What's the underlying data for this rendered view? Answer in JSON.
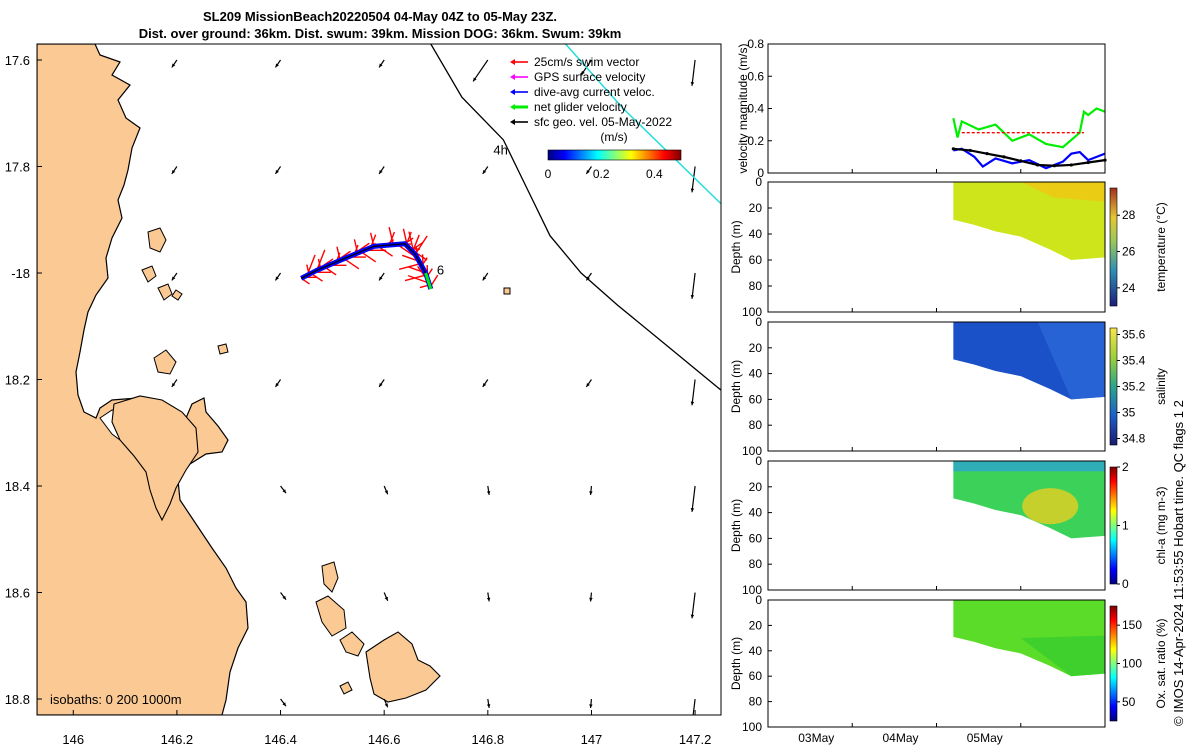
{
  "title": {
    "line1": "SL209 MissionBeach20220504 04-May 04Z to 05-May 23Z.",
    "line2": "Dist. over ground: 36km. Dist. swum: 39km. Mission DOG: 36km. Swum: 39km"
  },
  "footer_credit": "© IMOS 14-Apr-2024 11:53:55 Hobart time. QC flags 1  2",
  "colors": {
    "land": "#fbc994",
    "coast": "#000000",
    "swim": "#ff0000",
    "gps": "#ff00ff",
    "current": "#0000ff",
    "net": "#00ee00",
    "geo": "#000000",
    "cyan": "#22dddd",
    "profile_fill": "#cde51a"
  },
  "chart_data": [
    {
      "type": "scatter",
      "panel": "map",
      "xlim": [
        145.93,
        147.25
      ],
      "ylim": [
        -18.83,
        -17.57
      ],
      "xticks": [
        146,
        146.2,
        146.4,
        146.6,
        146.8,
        147,
        147.2
      ],
      "xtick_labels": [
        "146",
        "146.2",
        "146.4",
        "146.6",
        "146.8",
        "147",
        "147.2"
      ],
      "yticks": [
        -17.6,
        -17.8,
        -18,
        -18.2,
        -18.4,
        -18.6,
        -18.8
      ],
      "ytick_labels": [
        "17.6",
        "17.8",
        "-18",
        "18.2",
        "18.4",
        "18.6",
        "18.8"
      ],
      "isobath_label": "isobaths: 0   200  1000m",
      "track_labels": [
        {
          "text": "4h",
          "x": 146.83,
          "y": -17.77
        },
        {
          "text": "6",
          "x": 146.69,
          "y": -17.995
        }
      ],
      "glider_track": [
        [
          146.44,
          -18.01
        ],
        [
          146.47,
          -17.995
        ],
        [
          146.53,
          -17.97
        ],
        [
          146.58,
          -17.95
        ],
        [
          146.64,
          -17.945
        ],
        [
          146.66,
          -17.965
        ],
        [
          146.68,
          -18.0
        ],
        [
          146.69,
          -18.03
        ]
      ],
      "isobath_1000m": [
        [
          146.69,
          -17.57
        ],
        [
          146.75,
          -17.67
        ],
        [
          146.83,
          -17.75
        ],
        [
          146.88,
          -17.85
        ],
        [
          146.92,
          -17.93
        ],
        [
          146.98,
          -18.0
        ],
        [
          147.05,
          -18.06
        ],
        [
          147.15,
          -18.14
        ],
        [
          147.25,
          -18.22
        ]
      ],
      "cyan_line": [
        [
          146.95,
          -17.57
        ],
        [
          147.06,
          -17.69
        ],
        [
          147.25,
          -17.87
        ]
      ],
      "legend": {
        "entries": [
          {
            "label": "25cm/s swim vector",
            "color": "#ff0000"
          },
          {
            "label": "GPS surface velocity",
            "color": "#ff00ff"
          },
          {
            "label": "dive-avg current veloc.",
            "color": "#0000ff"
          },
          {
            "label": "net glider velocity",
            "color": "#00ee00"
          },
          {
            "label": "sfc geo. vel. 05-May-2022",
            "color": "#000000"
          }
        ],
        "colorbar_label": "(m/s)",
        "colorbar_ticks": [
          "0",
          "0.2",
          "0.4"
        ]
      }
    },
    {
      "type": "line",
      "panel": "velocity",
      "ylabel": "velocity magnitude (m/s)",
      "ylim": [
        0,
        0.8
      ],
      "yticks": [
        "0",
        "0.2",
        "0.4",
        "0.6",
        "0.8"
      ],
      "xlim": [
        0,
        4
      ],
      "x_tick_labels": [
        "03May",
        "04May",
        "05May"
      ],
      "series": [
        {
          "color": "#00ee00",
          "x": [
            2.2,
            2.25,
            2.3,
            2.5,
            2.7,
            2.9,
            3.1,
            3.3,
            3.5,
            3.7,
            3.75,
            3.8,
            3.9,
            4.0
          ],
          "values": [
            0.34,
            0.22,
            0.32,
            0.27,
            0.3,
            0.2,
            0.24,
            0.18,
            0.16,
            0.25,
            0.38,
            0.36,
            0.4,
            0.38
          ]
        },
        {
          "color": "#0000ff",
          "x": [
            2.2,
            2.3,
            2.45,
            2.55,
            2.7,
            2.9,
            3.1,
            3.3,
            3.5,
            3.6,
            3.7,
            3.8,
            3.9,
            4.0
          ],
          "values": [
            0.14,
            0.15,
            0.1,
            0.04,
            0.09,
            0.06,
            0.08,
            0.03,
            0.07,
            0.12,
            0.13,
            0.08,
            0.1,
            0.12
          ]
        },
        {
          "color": "#000000",
          "x": [
            2.2,
            2.4,
            2.6,
            2.8,
            3.0,
            3.2,
            3.4,
            3.6,
            3.8,
            4.0
          ],
          "values": [
            0.15,
            0.14,
            0.12,
            0.1,
            0.075,
            0.05,
            0.045,
            0.05,
            0.065,
            0.08
          ]
        },
        {
          "color": "#ff0000",
          "x": [
            2.3,
            3.75
          ],
          "values": [
            0.25,
            0.25
          ]
        }
      ]
    },
    {
      "type": "heatmap",
      "panel": "temperature",
      "ylabel": "Depth (m)",
      "colorbar_label": "temperature (°C)",
      "ylim": [
        0,
        100
      ],
      "yticks": [
        "0",
        "20",
        "40",
        "60",
        "80",
        "100"
      ],
      "colorbar_ticks": [
        "24",
        "26",
        "28"
      ],
      "colorbar_range": [
        23,
        29.5
      ],
      "fill": "#cde51a",
      "highlight": "#f0c815",
      "x_tick_labels": [
        "03May",
        "04May",
        "05May"
      ]
    },
    {
      "type": "heatmap",
      "panel": "salinity",
      "ylabel": "Depth (m)",
      "colorbar_label": "salinity",
      "ylim": [
        0,
        100
      ],
      "yticks": [
        "0",
        "20",
        "40",
        "60",
        "80",
        "100"
      ],
      "colorbar_ticks": [
        "34.8",
        "35",
        "35.2",
        "35.4",
        "35.6"
      ],
      "colorbar_range": [
        34.75,
        35.65
      ],
      "fill": "#1a50c8",
      "highlight": "#3070dc",
      "x_tick_labels": [
        "03May",
        "04May",
        "05May"
      ]
    },
    {
      "type": "heatmap",
      "panel": "chla",
      "ylabel": "Depth (m)",
      "colorbar_label": "chl-a (mg m-3)",
      "ylim": [
        0,
        100
      ],
      "yticks": [
        "0",
        "20",
        "40",
        "60",
        "80",
        "100"
      ],
      "colorbar_ticks": [
        "0",
        "1",
        "2"
      ],
      "colorbar_range": [
        0,
        2
      ],
      "fill": "#3cd25a",
      "highlight": "#e8d020",
      "x_tick_labels": [
        "03May",
        "04May",
        "05May"
      ]
    },
    {
      "type": "heatmap",
      "panel": "oxygen",
      "ylabel": "Depth (m)",
      "colorbar_label": "Ox. sat. ratio (%)",
      "ylim": [
        0,
        100
      ],
      "yticks": [
        "0",
        "20",
        "40",
        "60",
        "80",
        "100"
      ],
      "colorbar_ticks": [
        "50",
        "100",
        "150"
      ],
      "colorbar_range": [
        25,
        175
      ],
      "fill": "#5adc28",
      "highlight": "#48d028",
      "x_tick_labels": [
        "03May",
        "04May",
        "05May"
      ]
    }
  ]
}
